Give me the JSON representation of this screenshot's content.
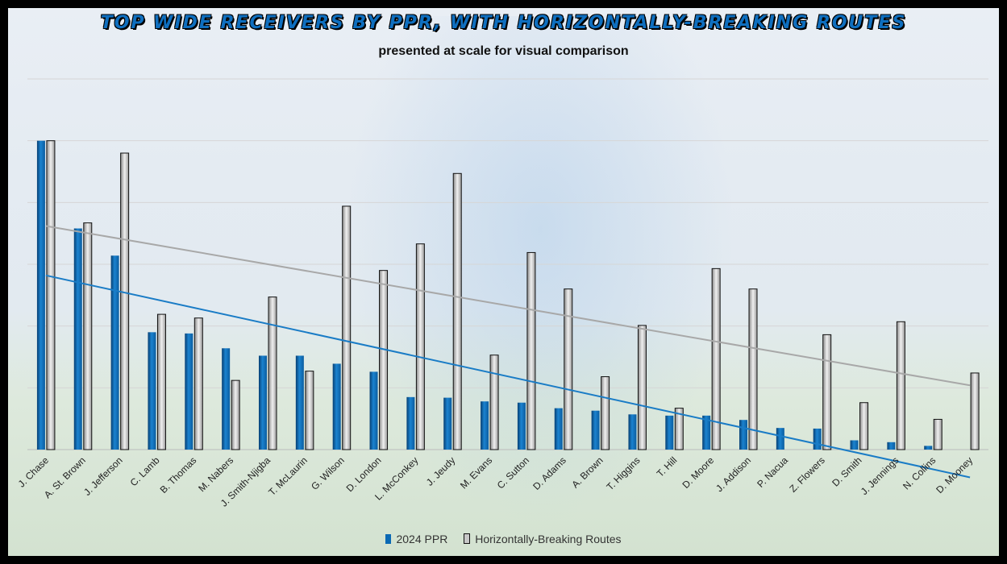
{
  "chart_data": {
    "type": "bar",
    "title": "TOP WIDE RECEIVERS BY PPR, WITH HORIZONTALLY-BREAKING ROUTES",
    "subtitle": "presented at scale for visual comparison",
    "categories": [
      "J. Chase",
      "A. St. Brown",
      "J. Jefferson",
      "C. Lamb",
      "B. Thomas",
      "M. Nabers",
      "J. Smith-Njigba",
      "T. McLaurin",
      "G. Wilson",
      "D. London",
      "L. McConkey",
      "J. Jeudy",
      "M. Evans",
      "C. Sutton",
      "D. Adams",
      "A. Brown",
      "T. Higgins",
      "T. Hill",
      "D. Moore",
      "J. Addison",
      "P. Nacua",
      "Z. Flowers",
      "D. Smith",
      "J. Jennings",
      "N. Collins",
      "D. Mooney"
    ],
    "series": [
      {
        "name": "2024 PPR",
        "color": "#0a69b4",
        "values": [
          500,
          358,
          314,
          190,
          188,
          164,
          152,
          152,
          139,
          126,
          85,
          84,
          78,
          76,
          67,
          63,
          57,
          55,
          55,
          48,
          35,
          34,
          15,
          12,
          6,
          0
        ]
      },
      {
        "name": "Horizontally-Breaking Routes",
        "color": "#c8c8c8",
        "values": [
          500,
          367,
          480,
          219,
          213,
          112,
          247,
          127,
          394,
          290,
          333,
          447,
          153,
          319,
          260,
          118,
          201,
          67,
          293,
          260,
          0,
          186,
          76,
          207,
          49,
          124
        ]
      }
    ],
    "trendlines": [
      {
        "series": "2024 PPR",
        "color": "#1a7cc6",
        "start": 282,
        "end": -45
      },
      {
        "series": "Horizontally-Breaking Routes",
        "color": "#a8a8a8",
        "start": 362,
        "end": 104
      }
    ],
    "ylim": [
      0,
      600
    ],
    "grid": true,
    "legend_position": "bottom",
    "xlabel": "",
    "ylabel": ""
  }
}
